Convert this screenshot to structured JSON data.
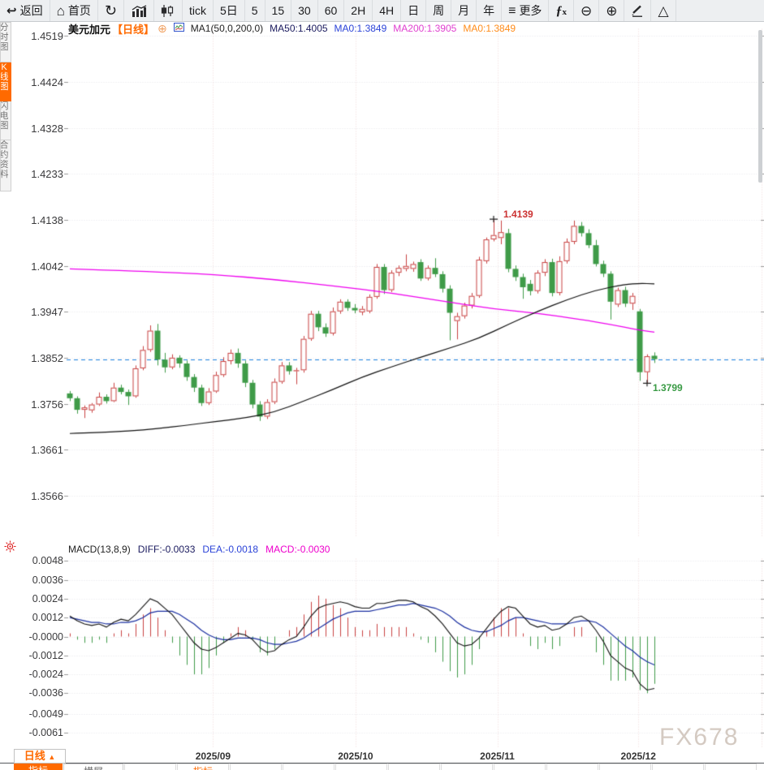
{
  "toolbar": {
    "items": [
      {
        "name": "back-button",
        "icon": "back-arrow-icon",
        "label": "返回"
      },
      {
        "name": "home-button",
        "icon": "home-icon",
        "label": "首页"
      },
      {
        "name": "refresh-button",
        "icon": "refresh-icon",
        "label": ""
      },
      {
        "name": "line-chart-button",
        "icon": "line-chart-icon",
        "label": ""
      },
      {
        "name": "candlestick-chart-button",
        "icon": "candlestick-icon",
        "label": ""
      },
      {
        "name": "interval-tick-button",
        "icon": "",
        "label": "tick"
      },
      {
        "name": "interval-5d-button",
        "icon": "",
        "label": "5日"
      },
      {
        "name": "interval-5m-button",
        "icon": "",
        "label": "5"
      },
      {
        "name": "interval-15m-button",
        "icon": "",
        "label": "15"
      },
      {
        "name": "interval-30m-button",
        "icon": "",
        "label": "30"
      },
      {
        "name": "interval-60m-button",
        "icon": "",
        "label": "60"
      },
      {
        "name": "interval-2h-button",
        "icon": "",
        "label": "2H"
      },
      {
        "name": "interval-4h-button",
        "icon": "",
        "label": "4H"
      },
      {
        "name": "interval-day-button",
        "icon": "",
        "label": "日"
      },
      {
        "name": "interval-week-button",
        "icon": "",
        "label": "周"
      },
      {
        "name": "interval-month-button",
        "icon": "",
        "label": "月"
      },
      {
        "name": "interval-year-button",
        "icon": "",
        "label": "年"
      },
      {
        "name": "more-button",
        "icon": "menu-icon",
        "label": "更多"
      },
      {
        "name": "indicator-fx-button",
        "icon": "fx-icon",
        "label": ""
      },
      {
        "name": "zoom-out-button",
        "icon": "zoom-out-icon",
        "label": ""
      },
      {
        "name": "zoom-in-button",
        "icon": "zoom-in-icon",
        "label": ""
      },
      {
        "name": "draw-button",
        "icon": "pencil-icon",
        "label": ""
      },
      {
        "name": "shapes-button",
        "icon": "triangle-icon",
        "label": ""
      }
    ]
  },
  "sidebar": {
    "tabs": [
      {
        "label": "分时图",
        "active": false
      },
      {
        "label": "K线图",
        "active": true
      },
      {
        "label": "闪电图",
        "active": false
      },
      {
        "label": "合约资料",
        "active": false
      }
    ]
  },
  "chart_header": {
    "symbol": "美元加元",
    "period": "【日线】",
    "plus": "⊕",
    "ma_settings": "MA1(50,0,200,0)",
    "ma50": "MA50:1.4005",
    "ma0_blue": "MA0:1.3849",
    "ma200": "MA200:1.3905",
    "ma0_orange": "MA0:1.3849"
  },
  "macd_header": {
    "title": "MACD(13,8,9)",
    "diff": "DIFF:-0.0033",
    "dea": "DEA:-0.0018",
    "macd": "MACD:-0.0030"
  },
  "annotations": {
    "high": "1.4139",
    "low": "1.3799"
  },
  "bottom_bar": {
    "period": "日线",
    "arrow": "▲",
    "partial_tabs": [
      "指标",
      "横屏",
      "指标"
    ]
  },
  "watermark": "FX678",
  "colors": {
    "up": "#c84040",
    "down": "#3f9b48",
    "ma50": "#111111",
    "ma200": "#ee00ee",
    "last_price_line": "#1b7fdd",
    "diff_line": "#111111",
    "dea_line": "#1a2fa0",
    "hist_pos": "#c84040",
    "hist_neg": "#3f9b48",
    "accent_orange": "#ff6a00",
    "annotation_high": "#cc3333",
    "annotation_low": "#3a9b45",
    "header_blue": "#2b43d8",
    "header_magenta": "#e040d0",
    "header_orange": "#ff8c1a"
  },
  "chart_data": {
    "type": "candlestick",
    "title": "美元加元 日线 (USD/CAD daily)",
    "price_axis_labels": [
      "1.4519",
      "1.4424",
      "1.4328",
      "1.4233",
      "1.4138",
      "1.4042",
      "1.3947",
      "1.3852",
      "1.3756",
      "1.3661",
      "1.3566"
    ],
    "price_axis_top": 1.4519,
    "price_axis_bottom": 1.3566,
    "x_labels": [
      {
        "label": "2025/09",
        "index": 19.6
      },
      {
        "label": "2025/10",
        "index": 39.1
      },
      {
        "label": "2025/11",
        "index": 58.5
      },
      {
        "label": "2025/12",
        "index": 77.8
      }
    ],
    "last_price": 1.3849,
    "high_annotation": {
      "value": 1.4139,
      "index": 58
    },
    "low_annotation": {
      "value": 1.3799,
      "index": 79
    },
    "ma_series": [
      {
        "name": "MA50",
        "value": 1.4005
      },
      {
        "name": "MA200",
        "value": 1.3905
      }
    ],
    "candles": [
      [
        1.3778,
        1.3783,
        1.3762,
        1.3768
      ],
      [
        1.3768,
        1.3772,
        1.3736,
        1.3744
      ],
      [
        1.3744,
        1.3753,
        1.3727,
        1.3749
      ],
      [
        1.3743,
        1.3758,
        1.3738,
        1.3755
      ],
      [
        1.3755,
        1.378,
        1.3752,
        1.3771
      ],
      [
        1.3771,
        1.3776,
        1.3757,
        1.3762
      ],
      [
        1.3762,
        1.38,
        1.376,
        1.379
      ],
      [
        1.379,
        1.3796,
        1.3776,
        1.3781
      ],
      [
        1.3781,
        1.3786,
        1.3754,
        1.3772
      ],
      [
        1.3772,
        1.3836,
        1.3769,
        1.383
      ],
      [
        1.383,
        1.3876,
        1.3826,
        1.3868
      ],
      [
        1.3868,
        1.3919,
        1.3864,
        1.3908
      ],
      [
        1.3908,
        1.3922,
        1.3836,
        1.3848
      ],
      [
        1.3848,
        1.3862,
        1.3821,
        1.3832
      ],
      [
        1.3832,
        1.3859,
        1.3828,
        1.3852
      ],
      [
        1.3852,
        1.3857,
        1.3831,
        1.384
      ],
      [
        1.384,
        1.3846,
        1.3804,
        1.3812
      ],
      [
        1.3812,
        1.3818,
        1.3781,
        1.379
      ],
      [
        1.379,
        1.3796,
        1.3752,
        1.3758
      ],
      [
        1.3758,
        1.3789,
        1.3754,
        1.3782
      ],
      [
        1.3782,
        1.3823,
        1.3779,
        1.3816
      ],
      [
        1.3816,
        1.3853,
        1.3812,
        1.3845
      ],
      [
        1.3845,
        1.3869,
        1.3838,
        1.3862
      ],
      [
        1.3862,
        1.3871,
        1.3831,
        1.384
      ],
      [
        1.384,
        1.3846,
        1.3791,
        1.38
      ],
      [
        1.38,
        1.3806,
        1.3747,
        1.3755
      ],
      [
        1.3755,
        1.3762,
        1.3721,
        1.373
      ],
      [
        1.373,
        1.3766,
        1.3725,
        1.376
      ],
      [
        1.376,
        1.3809,
        1.3756,
        1.3802
      ],
      [
        1.3802,
        1.3843,
        1.3798,
        1.3836
      ],
      [
        1.3836,
        1.3843,
        1.3817,
        1.3824
      ],
      [
        1.3824,
        1.3831,
        1.3797,
        1.3826
      ],
      [
        1.3826,
        1.3897,
        1.3821,
        1.3891
      ],
      [
        1.3891,
        1.3949,
        1.3887,
        1.3943
      ],
      [
        1.3943,
        1.3949,
        1.3907,
        1.3915
      ],
      [
        1.3915,
        1.3923,
        1.3895,
        1.3902
      ],
      [
        1.3902,
        1.3956,
        1.3898,
        1.3948
      ],
      [
        1.3948,
        1.3973,
        1.3943,
        1.3968
      ],
      [
        1.3968,
        1.3973,
        1.3949,
        1.3955
      ],
      [
        1.3955,
        1.3963,
        1.3944,
        1.395
      ],
      [
        1.3946,
        1.3959,
        1.394,
        1.3953
      ],
      [
        1.3948,
        1.3983,
        1.3944,
        1.3978
      ],
      [
        1.3978,
        1.4046,
        1.3974,
        1.404
      ],
      [
        1.404,
        1.4046,
        1.3984,
        1.3992
      ],
      [
        1.3992,
        1.4033,
        1.3988,
        1.4028
      ],
      [
        1.4028,
        1.4043,
        1.4021,
        1.4038
      ],
      [
        1.4036,
        1.4066,
        1.4031,
        1.4042
      ],
      [
        1.4036,
        1.4051,
        1.403,
        1.4046
      ],
      [
        1.405,
        1.4056,
        1.4011,
        1.4016
      ],
      [
        1.4016,
        1.4043,
        1.4012,
        1.4038
      ],
      [
        1.4038,
        1.4058,
        1.4019,
        1.4025
      ],
      [
        1.4025,
        1.4031,
        1.3987,
        1.3995
      ],
      [
        1.3995,
        1.4002,
        1.3888,
        1.3945
      ],
      [
        1.3928,
        1.3945,
        1.389,
        1.3938
      ],
      [
        1.3938,
        1.3966,
        1.3933,
        1.396
      ],
      [
        1.396,
        1.3986,
        1.3954,
        1.398
      ],
      [
        1.398,
        1.4061,
        1.3976,
        1.4055
      ],
      [
        1.4052,
        1.4101,
        1.4047,
        1.4097
      ],
      [
        1.4097,
        1.4139,
        1.4093,
        1.4106
      ],
      [
        1.41,
        1.4136,
        1.4087,
        1.4112
      ],
      [
        1.411,
        1.4119,
        1.4029,
        1.4036
      ],
      [
        1.4036,
        1.4043,
        1.4011,
        1.4019
      ],
      [
        1.4019,
        1.4026,
        1.3974,
        1.3998
      ],
      [
        1.4005,
        1.4013,
        1.3981,
        1.399
      ],
      [
        1.399,
        1.4033,
        1.3985,
        1.4028
      ],
      [
        1.4028,
        1.4056,
        1.4021,
        1.405
      ],
      [
        1.405,
        1.4057,
        1.3979,
        1.3986
      ],
      [
        1.3986,
        1.4062,
        1.3981,
        1.4052
      ],
      [
        1.4052,
        1.4099,
        1.4047,
        1.4092
      ],
      [
        1.4092,
        1.4136,
        1.4087,
        1.4125
      ],
      [
        1.4125,
        1.4133,
        1.4103,
        1.411
      ],
      [
        1.411,
        1.4118,
        1.4079,
        1.4085
      ],
      [
        1.4085,
        1.4096,
        1.4041,
        1.4046
      ],
      [
        1.4046,
        1.4053,
        1.4019,
        1.4026
      ],
      [
        1.4026,
        1.4031,
        1.3931,
        1.3968
      ],
      [
        1.3962,
        1.3997,
        1.3957,
        1.3992
      ],
      [
        1.3992,
        1.3999,
        1.3957,
        1.3964
      ],
      [
        1.3964,
        1.3986,
        1.3951,
        1.398
      ],
      [
        1.3948,
        1.3953,
        1.3804,
        1.3822
      ],
      [
        1.3822,
        1.3859,
        1.3799,
        1.3855
      ],
      [
        1.3856,
        1.3863,
        1.3841,
        1.3849
      ]
    ],
    "ma50_keypoints": [
      [
        0,
        1.3695
      ],
      [
        4,
        1.3697
      ],
      [
        8,
        1.37
      ],
      [
        12,
        1.3705
      ],
      [
        16,
        1.3712
      ],
      [
        20,
        1.372
      ],
      [
        24,
        1.3727
      ],
      [
        28,
        1.3739
      ],
      [
        32,
        1.3762
      ],
      [
        36,
        1.3786
      ],
      [
        40,
        1.3812
      ],
      [
        44,
        1.3833
      ],
      [
        48,
        1.3853
      ],
      [
        52,
        1.3872
      ],
      [
        56,
        1.3892
      ],
      [
        60,
        1.3921
      ],
      [
        64,
        1.3948
      ],
      [
        68,
        1.3972
      ],
      [
        72,
        1.3992
      ],
      [
        76,
        1.4004
      ],
      [
        78,
        1.4006
      ],
      [
        80,
        1.4005
      ]
    ],
    "ma200_keypoints": [
      [
        0,
        1.4036
      ],
      [
        10,
        1.4031
      ],
      [
        20,
        1.4024
      ],
      [
        28,
        1.4014
      ],
      [
        36,
        1.4001
      ],
      [
        44,
        1.3986
      ],
      [
        52,
        1.3967
      ],
      [
        58,
        1.3953
      ],
      [
        64,
        1.3944
      ],
      [
        70,
        1.3931
      ],
      [
        74,
        1.3921
      ],
      [
        78,
        1.3909
      ],
      [
        80,
        1.3905
      ]
    ],
    "macd": {
      "params": "(13,8,9)",
      "axis_labels": [
        "0.0048",
        "0.0036",
        "0.0024",
        "0.0012",
        "-0.0000",
        "-0.0012",
        "-0.0024",
        "-0.0036",
        "-0.0049",
        "-0.0061"
      ],
      "hist_formula": "2*(diff-dea)",
      "diff": [
        0.0013,
        0.001,
        0.0008,
        0.0007,
        0.0008,
        0.0006,
        0.0009,
        0.0011,
        0.001,
        0.0014,
        0.0019,
        0.0024,
        0.0022,
        0.0018,
        0.0014,
        0.0008,
        0.0002,
        -0.0004,
        -0.0008,
        -0.0009,
        -0.0007,
        -0.0004,
        -0.0001,
        0.0002,
        0.0001,
        -0.0002,
        -0.0007,
        -0.001,
        -0.0009,
        -0.0005,
        -0.0002,
        0.0,
        0.0006,
        0.0013,
        0.0018,
        0.002,
        0.0021,
        0.0022,
        0.0021,
        0.0019,
        0.0018,
        0.0018,
        0.0021,
        0.0021,
        0.0022,
        0.0023,
        0.0023,
        0.0022,
        0.0019,
        0.0017,
        0.0013,
        0.0008,
        0.0002,
        -0.0004,
        -0.0006,
        -0.0005,
        -0.0001,
        0.0005,
        0.0011,
        0.0016,
        0.0019,
        0.0018,
        0.0013,
        0.0008,
        0.0006,
        0.0007,
        0.0004,
        0.0005,
        0.0008,
        0.0012,
        0.0013,
        0.001,
        0.0004,
        -0.0003,
        -0.0012,
        -0.0016,
        -0.002,
        -0.0022,
        -0.003,
        -0.0034,
        -0.0033
      ],
      "dea": [
        0.0012,
        0.0011,
        0.001,
        0.0009,
        0.0009,
        0.0008,
        0.0008,
        0.0009,
        0.0009,
        0.001,
        0.0012,
        0.0015,
        0.0016,
        0.0016,
        0.0016,
        0.0014,
        0.0011,
        0.0008,
        0.0004,
        0.0001,
        -0.0001,
        -0.0002,
        -0.0002,
        -0.0001,
        -0.0001,
        -0.0001,
        -0.0002,
        -0.0004,
        -0.0005,
        -0.0005,
        -0.0004,
        -0.0003,
        -0.0001,
        0.0002,
        0.0005,
        0.0008,
        0.0011,
        0.0013,
        0.0015,
        0.0016,
        0.0016,
        0.0016,
        0.0017,
        0.0018,
        0.0019,
        0.002,
        0.002,
        0.0021,
        0.002,
        0.0019,
        0.0018,
        0.0016,
        0.0013,
        0.0009,
        0.0006,
        0.0004,
        0.0003,
        0.0003,
        0.0005,
        0.0007,
        0.001,
        0.0012,
        0.0012,
        0.0011,
        0.001,
        0.0009,
        0.0008,
        0.0008,
        0.0008,
        0.0009,
        0.001,
        0.001,
        0.0009,
        0.0006,
        0.0002,
        -0.0002,
        -0.0006,
        -0.0009,
        -0.0013,
        -0.0016,
        -0.0018
      ]
    }
  }
}
